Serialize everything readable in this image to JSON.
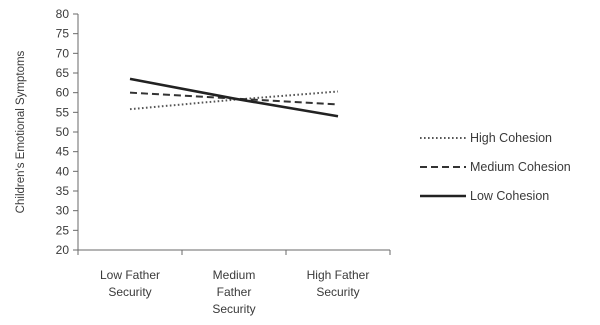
{
  "chart_data": {
    "type": "line",
    "title": "",
    "xlabel": "",
    "ylabel": "Children's Emotional Symptoms",
    "ylim": [
      20,
      80
    ],
    "yticks": [
      20,
      25,
      30,
      35,
      40,
      45,
      50,
      55,
      60,
      65,
      70,
      75,
      80
    ],
    "categories": [
      [
        "Low Father",
        "Security"
      ],
      [
        "Medium",
        "Father",
        "Security"
      ],
      [
        "High Father",
        "Security"
      ]
    ],
    "grid": false,
    "legend_position": "right",
    "series": [
      {
        "name": "High Cohesion",
        "values": [
          55.8,
          58.2,
          60.3
        ],
        "line_style": "dotted",
        "color": "#555555"
      },
      {
        "name": "Medium Cohesion",
        "values": [
          60.0,
          58.5,
          57.0
        ],
        "line_style": "dashed",
        "color": "#333333"
      },
      {
        "name": "Low Cohesion",
        "values": [
          63.5,
          58.5,
          54.0
        ],
        "line_style": "solid",
        "color": "#222222"
      }
    ]
  }
}
